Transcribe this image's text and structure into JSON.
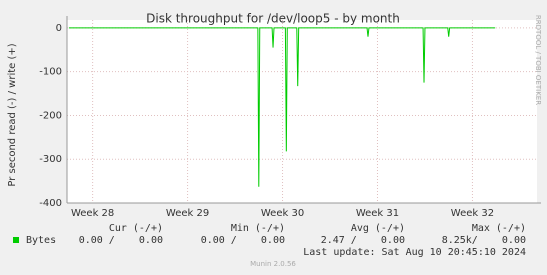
{
  "chart_data": {
    "type": "line",
    "title": "Disk throughput for /dev/loop5 - by month",
    "y_label": "Pr second read (-) / write (+)",
    "side_text": "RRDTOOL / TOBI OETIKER",
    "x": [
      27.75,
      29.74,
      29.75,
      29.76,
      29.89,
      29.9,
      29.91,
      30.03,
      30.04,
      30.05,
      30.15,
      30.16,
      30.17,
      30.89,
      30.9,
      30.91,
      31.48,
      31.49,
      31.5,
      31.74,
      31.75,
      31.76,
      32.24
    ],
    "series": [
      {
        "name": "Bytes",
        "color": "#00cc00",
        "values": [
          0,
          0,
          -363,
          0,
          0,
          -45,
          0,
          0,
          -282,
          0,
          0,
          -133,
          0,
          0,
          -20,
          0,
          0,
          -125,
          0,
          0,
          -20,
          0,
          0
        ]
      }
    ],
    "xlim": [
      27.73,
      32.68
    ],
    "xticks": [
      {
        "value": 28,
        "label": "Week 28"
      },
      {
        "value": 29,
        "label": "Week 29"
      },
      {
        "value": 30,
        "label": "Week 30"
      },
      {
        "value": 31,
        "label": "Week 31"
      },
      {
        "value": 32,
        "label": "Week 32"
      }
    ],
    "ylim": [
      -400,
      18
    ],
    "yticks": [
      0,
      -100,
      -200,
      -300,
      -400
    ],
    "grid": true,
    "summary": {
      "headers": [
        "Cur (-/+)",
        "Min (-/+)",
        "Avg (-/+)",
        "Max (-/+)"
      ],
      "cells": [
        "0.00 /    0.00",
        "0.00 /    0.00",
        "2.47 /    0.00",
        "8.25k/    0.00"
      ]
    },
    "last_update": "Last update: Sat Aug 10 20:45:10 2024",
    "footer": "Munin 2.0.56"
  }
}
